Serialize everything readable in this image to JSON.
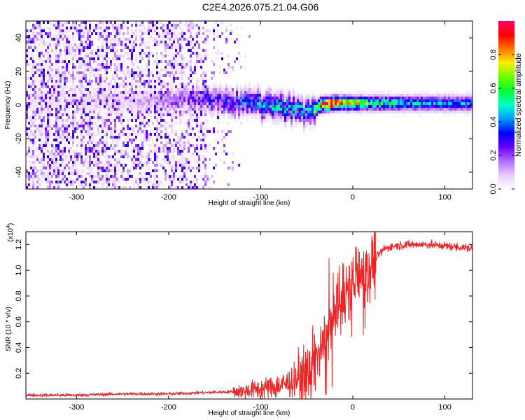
{
  "title": "C2E4.2026.075.21.04.G06",
  "chart_data": [
    {
      "type": "heatmap",
      "xlabel": "Height of straight line (km)",
      "ylabel": "Frequency (Hz)",
      "xlim": [
        -355,
        130
      ],
      "ylim": [
        -50,
        50
      ],
      "xticks": [
        -300,
        -200,
        -100,
        0,
        100
      ],
      "yticks": [
        -40,
        -20,
        0,
        20,
        40
      ],
      "colorbar": {
        "label": "Normalized spectral amplitude",
        "ticks": [
          0.0,
          0.2,
          0.4,
          0.6,
          0.8
        ],
        "range": [
          0,
          1
        ],
        "colors": [
          "#ffffff",
          "#e6ccff",
          "#b06aff",
          "#6600ff",
          "#0000ff",
          "#0099ff",
          "#00ffcc",
          "#00ff33",
          "#66ff00",
          "#ffee00",
          "#ff7700",
          "#ff0000",
          "#ff0066"
        ]
      },
      "ridge": {
        "x": [
          -300,
          -250,
          -200,
          -160,
          -120,
          -90,
          -70,
          -55,
          -45,
          -35,
          -20,
          0,
          20,
          60,
          100,
          130
        ],
        "frequency": [
          3,
          2,
          3,
          4,
          2,
          0,
          -2,
          -4,
          -5,
          0,
          1,
          1,
          1,
          1,
          1,
          1
        ],
        "amplitude": [
          0.05,
          0.08,
          0.15,
          0.25,
          0.35,
          0.45,
          0.45,
          0.4,
          0.4,
          0.85,
          0.9,
          0.7,
          0.55,
          0.45,
          0.4,
          0.4
        ]
      }
    },
    {
      "type": "line",
      "xlabel": "Height of straight line (km)",
      "ylabel": "SNR (10 * v/v)",
      "yscale_label": "(x10",
      "yscale_exp": "4",
      "yscale_suffix": ")",
      "xlim": [
        -355,
        130
      ],
      "ylim": [
        0,
        1.3
      ],
      "xticks": [
        -300,
        -200,
        -100,
        0,
        100
      ],
      "yticks": [
        0.2,
        0.4,
        0.6,
        0.8,
        1.0,
        1.2
      ],
      "ytick_labels": [
        "0.2",
        "0.4",
        "0.6",
        "0.8",
        "1.0",
        "1.2"
      ],
      "color": "#ee2222",
      "x": [
        -355,
        -300,
        -250,
        -200,
        -160,
        -120,
        -100,
        -80,
        -60,
        -45,
        -35,
        -25,
        -15,
        -5,
        5,
        15,
        25,
        35,
        45,
        60,
        80,
        100,
        115,
        130
      ],
      "y": [
        0.03,
        0.03,
        0.04,
        0.04,
        0.05,
        0.06,
        0.08,
        0.1,
        0.15,
        0.25,
        0.38,
        0.6,
        0.78,
        0.88,
        0.95,
        0.98,
        1.1,
        1.17,
        1.19,
        1.2,
        1.2,
        1.19,
        1.18,
        1.17
      ]
    }
  ]
}
